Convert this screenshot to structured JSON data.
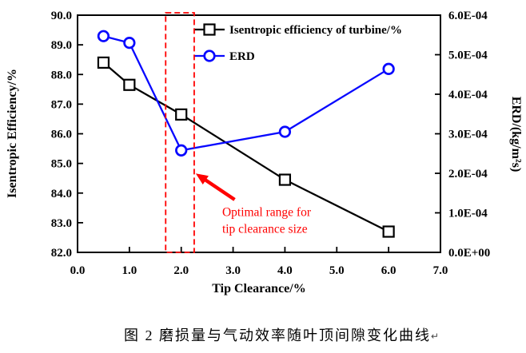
{
  "caption": {
    "text": "图 2 磨损量与气动效率随叶顶间隙变化曲线",
    "return_mark": "↵"
  },
  "chart_data": {
    "type": "line",
    "x": [
      0.5,
      1.0,
      2.0,
      4.0,
      6.0
    ],
    "series": [
      {
        "name": "Isentropic efficiency of turbine/%",
        "axis": "left",
        "color": "#000000",
        "marker": "square",
        "values": [
          88.4,
          87.65,
          86.65,
          84.45,
          82.7
        ]
      },
      {
        "name": "ERD",
        "axis": "right",
        "color": "#0808ff",
        "marker": "circle",
        "values": [
          0.000547,
          0.00053,
          0.000258,
          0.000305,
          0.000464
        ]
      }
    ],
    "x_axis": {
      "label": "Tip Clearance/%",
      "min": 0.0,
      "max": 7.0,
      "tick_values": [
        0,
        1,
        2,
        3,
        4,
        5,
        6,
        7
      ],
      "tick_labels": [
        "0.0",
        "1.0",
        "2.0",
        "3.0",
        "4.0",
        "5.0",
        "6.0",
        "7.0"
      ]
    },
    "y_left": {
      "label": "Isentropic Efficiency/%",
      "min": 82.0,
      "max": 90.0,
      "tick_values": [
        82,
        83,
        84,
        85,
        86,
        87,
        88,
        89,
        90
      ],
      "tick_labels": [
        "82.0",
        "83.0",
        "84.0",
        "85.0",
        "86.0",
        "87.0",
        "88.0",
        "89.0",
        "90.0"
      ]
    },
    "y_right": {
      "label": "ERD/(kg/m²s)",
      "min": 0,
      "max": 0.0006,
      "tick_values": [
        0,
        0.0001,
        0.0002,
        0.0003,
        0.0004,
        0.0005,
        0.0006
      ],
      "tick_labels": [
        "0.0E+00",
        "1.0E-04",
        "2.0E-04",
        "3.0E-04",
        "4.0E-04",
        "5.0E-04",
        "6.0E-04"
      ]
    },
    "legend_position": "top-inside",
    "grid": false,
    "annotation": {
      "line1": "Optimal range for",
      "line2": "tip clearance size",
      "color": "#ff0000",
      "highlight_box": {
        "x_min": 1.7,
        "x_max": 2.25
      },
      "arrow": {
        "x_from": 3.03,
        "y_from": 83.78,
        "x_to": 2.28,
        "y_to": 84.66
      },
      "text_anchor": {
        "x": 2.79,
        "y_line1": 83.23,
        "y_line2": 82.66
      }
    }
  }
}
